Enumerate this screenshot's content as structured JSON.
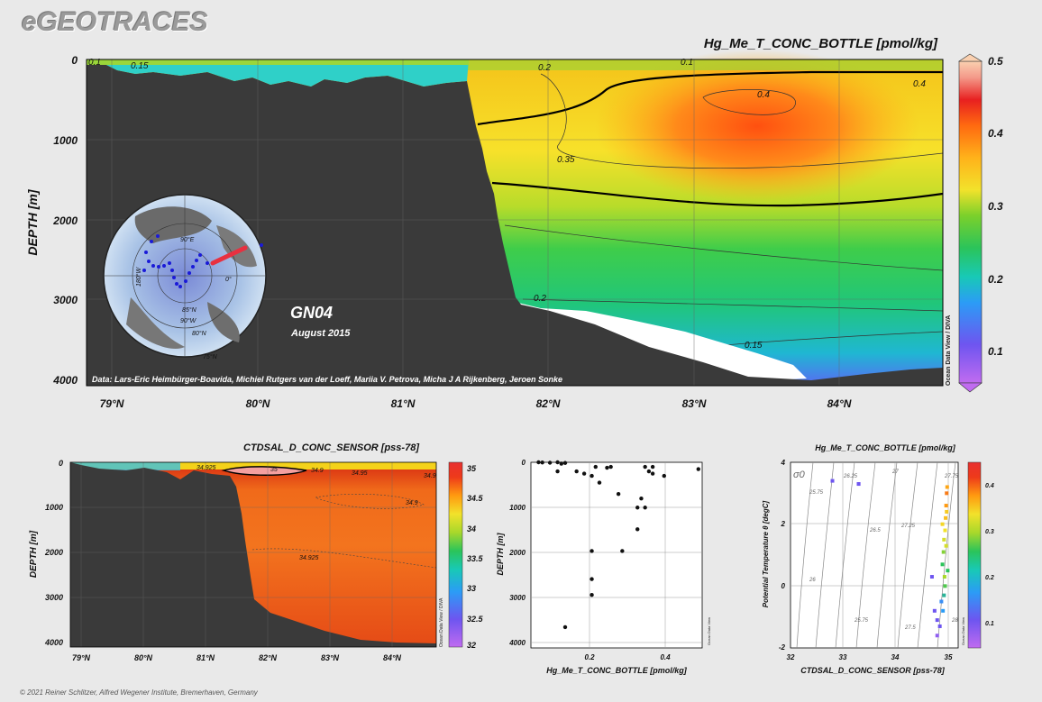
{
  "logo": "eGEOTRACES",
  "footer": "© 2021 Reiner Schlitzer, Alfred Wegener Institute, Bremerhaven, Germany",
  "section": {
    "title": "Hg_Me_T_CONC_BOTTLE [pmol/kg]",
    "ylabel": "DEPTH [m]",
    "yticks": [
      "0",
      "1000",
      "2000",
      "3000",
      "4000"
    ],
    "xticks": [
      "79°N",
      "80°N",
      "81°N",
      "82°N",
      "83°N",
      "84°N"
    ],
    "cruise": "GN04",
    "date": "August 2015",
    "credits": "Data: Lars-Eric Heimbürger-Boavida, Michiel Rutgers van der Loeff, Mariia V. Petrova, Micha J A Rijkenberg, Jeroen Sonke",
    "watermark": "Ocean Data View / DIVA",
    "colorbar_ticks": [
      "0.5",
      "0.4",
      "0.3",
      "0.2",
      "0.1"
    ],
    "contours": [
      "0.1",
      "0.15",
      "0.2",
      "0.1",
      "0.4",
      "0.4",
      "0.35",
      "0.2",
      "0.15"
    ],
    "map_labels": [
      "90°E",
      "180°W",
      "0°",
      "90°W",
      "85°N",
      "80°N",
      "75°N"
    ]
  },
  "sal": {
    "title": "CTDSAL_D_CONC_SENSOR [pss-78]",
    "ylabel": "DEPTH [m]",
    "yticks": [
      "0",
      "1000",
      "2000",
      "3000",
      "4000"
    ],
    "xticks": [
      "79°N",
      "80°N",
      "81°N",
      "82°N",
      "83°N",
      "84°N"
    ],
    "colorbar_ticks": [
      "35",
      "34.5",
      "34",
      "33.5",
      "33",
      "32.5",
      "32"
    ],
    "contours": [
      "34.925",
      "35",
      "34.9",
      "34.95",
      "34.9",
      "34.9",
      "34.925"
    ],
    "watermark": "Ocean Data View / DIVA"
  },
  "profile": {
    "xlabel": "Hg_Me_T_CONC_BOTTLE [pmol/kg]",
    "ylabel": "DEPTH [m]",
    "yticks": [
      "0",
      "1000",
      "2000",
      "3000",
      "4000"
    ],
    "xticks": [
      "0.2",
      "0.4"
    ],
    "watermark": "Ocean Data View"
  },
  "ts": {
    "title": "Hg_Me_T_CONC_BOTTLE [pmol/kg]",
    "xlabel": "CTDSAL_D_CONC_SENSOR [pss-78]",
    "ylabel": "Potential Temperature θ [degC]",
    "yticks": [
      "4",
      "2",
      "0",
      "-2"
    ],
    "xticks": [
      "32",
      "33",
      "34",
      "35"
    ],
    "sigma_label": "σ0",
    "isopycnals": [
      "25.75",
      "26.25",
      "27",
      "27.75",
      "26.5",
      "27.25",
      "26",
      "25.75",
      "27.5",
      "28"
    ],
    "colorbar_ticks": [
      "0.4",
      "0.3",
      "0.2",
      "0.1"
    ],
    "watermark": "Ocean Data View"
  },
  "chart_data": [
    {
      "type": "heatmap",
      "title": "Hg_Me_T_CONC_BOTTLE [pmol/kg]",
      "xlabel": "",
      "ylabel": "DEPTH [m]",
      "x_unit": "°N",
      "xlim": [
        78.8,
        84.7
      ],
      "ylim": [
        4000,
        0
      ],
      "colorbar": {
        "min": 0.05,
        "max": 0.5
      },
      "contour_levels": [
        0.1,
        0.15,
        0.2,
        0.3,
        0.35,
        0.4
      ],
      "annotations": [
        "GN04",
        "August 2015"
      ]
    },
    {
      "type": "heatmap",
      "title": "CTDSAL_D_CONC_SENSOR [pss-78]",
      "ylabel": "DEPTH [m]",
      "xlim": [
        78.8,
        84.7
      ],
      "ylim": [
        4100,
        0
      ],
      "colorbar": {
        "min": 32,
        "max": 35
      },
      "contour_levels": [
        34.9,
        34.925,
        34.95,
        35
      ]
    },
    {
      "type": "scatter",
      "xlabel": "Hg_Me_T_CONC_BOTTLE [pmol/kg]",
      "ylabel": "DEPTH [m]",
      "xlim": [
        0.05,
        0.5
      ],
      "ylim": [
        4100,
        0
      ],
      "points": [
        {
          "x": 0.07,
          "y": 0
        },
        {
          "x": 0.08,
          "y": 5
        },
        {
          "x": 0.1,
          "y": 10
        },
        {
          "x": 0.12,
          "y": 0
        },
        {
          "x": 0.13,
          "y": 30
        },
        {
          "x": 0.14,
          "y": 15
        },
        {
          "x": 0.12,
          "y": 200
        },
        {
          "x": 0.17,
          "y": 200
        },
        {
          "x": 0.19,
          "y": 250
        },
        {
          "x": 0.21,
          "y": 300
        },
        {
          "x": 0.22,
          "y": 100
        },
        {
          "x": 0.25,
          "y": 120
        },
        {
          "x": 0.26,
          "y": 100
        },
        {
          "x": 0.35,
          "y": 100
        },
        {
          "x": 0.36,
          "y": 200
        },
        {
          "x": 0.37,
          "y": 100
        },
        {
          "x": 0.37,
          "y": 250
        },
        {
          "x": 0.4,
          "y": 300
        },
        {
          "x": 0.49,
          "y": 150
        },
        {
          "x": 0.23,
          "y": 450
        },
        {
          "x": 0.28,
          "y": 700
        },
        {
          "x": 0.34,
          "y": 800
        },
        {
          "x": 0.33,
          "y": 1000
        },
        {
          "x": 0.35,
          "y": 1000
        },
        {
          "x": 0.33,
          "y": 1480
        },
        {
          "x": 0.21,
          "y": 1960
        },
        {
          "x": 0.29,
          "y": 1960
        },
        {
          "x": 0.21,
          "y": 2580
        },
        {
          "x": 0.21,
          "y": 2930
        },
        {
          "x": 0.14,
          "y": 3640
        }
      ]
    },
    {
      "type": "scatter",
      "title": "Hg_Me_T_CONC_BOTTLE [pmol/kg]",
      "xlabel": "CTDSAL_D_CONC_SENSOR [pss-78]",
      "ylabel": "Potential Temperature θ [degC]",
      "xlim": [
        32,
        35.2
      ],
      "ylim": [
        -2,
        4
      ],
      "colorbar": {
        "min": 0.05,
        "max": 0.45
      },
      "points": [
        {
          "x": 32.8,
          "y": 3.4,
          "c": 0.1
        },
        {
          "x": 33.3,
          "y": 3.3,
          "c": 0.1
        },
        {
          "x": 33.3,
          "y": 3.3,
          "c": 0.1
        },
        {
          "x": 34.7,
          "y": 0.3,
          "c": 0.1
        },
        {
          "x": 34.75,
          "y": -0.8,
          "c": 0.1
        },
        {
          "x": 34.8,
          "y": -1.1,
          "c": 0.1
        },
        {
          "x": 34.85,
          "y": -1.3,
          "c": 0.1
        },
        {
          "x": 34.9,
          "y": 0.7,
          "c": 0.2
        },
        {
          "x": 34.92,
          "y": 1.1,
          "c": 0.25
        },
        {
          "x": 34.93,
          "y": 1.5,
          "c": 0.3
        },
        {
          "x": 34.95,
          "y": 1.8,
          "c": 0.32
        },
        {
          "x": 34.96,
          "y": 2.2,
          "c": 0.35
        },
        {
          "x": 34.97,
          "y": 2.6,
          "c": 0.38
        },
        {
          "x": 34.98,
          "y": 3.0,
          "c": 0.4
        },
        {
          "x": 34.99,
          "y": 3.2,
          "c": 0.37
        },
        {
          "x": 35.0,
          "y": 0.5,
          "c": 0.2
        },
        {
          "x": 34.93,
          "y": -0.3,
          "c": 0.18
        },
        {
          "x": 34.91,
          "y": -0.8,
          "c": 0.15
        },
        {
          "x": 34.95,
          "y": 0.0,
          "c": 0.22
        },
        {
          "x": 34.97,
          "y": 1.3,
          "c": 0.3
        },
        {
          "x": 34.88,
          "y": -0.5,
          "c": 0.14
        },
        {
          "x": 34.8,
          "y": -1.6,
          "c": 0.08
        },
        {
          "x": 34.9,
          "y": 2.0,
          "c": 0.33
        },
        {
          "x": 34.98,
          "y": 2.4,
          "c": 0.34
        },
        {
          "x": 34.94,
          "y": 0.3,
          "c": 0.27
        }
      ]
    }
  ]
}
